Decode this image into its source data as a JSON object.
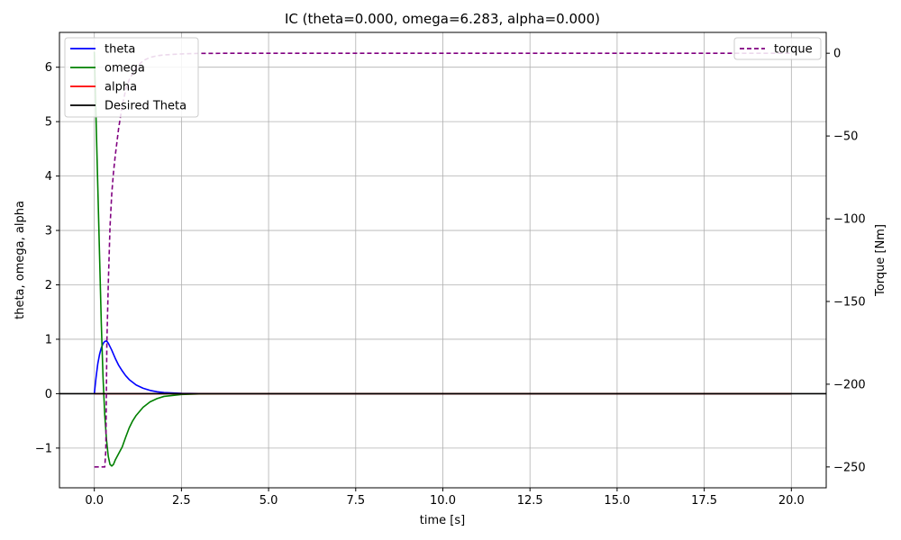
{
  "chart_data": {
    "type": "line",
    "title": "IC (theta=0.000, omega=6.283, alpha=0.000)",
    "xlabel": "time [s]",
    "ylabel": "theta, omega, alpha",
    "y2label": "Torque [Nm]",
    "xlim": [
      -1.0,
      21.0
    ],
    "ylim": [
      -1.73,
      6.64
    ],
    "y2lim": [
      -262.6,
      12.6
    ],
    "xticks": [
      0.0,
      2.5,
      5.0,
      7.5,
      10.0,
      12.5,
      15.0,
      17.5,
      20.0
    ],
    "xtick_labels": [
      "0.0",
      "2.5",
      "5.0",
      "7.5",
      "10.0",
      "12.5",
      "15.0",
      "17.5",
      "20.0"
    ],
    "yticks": [
      -1,
      0,
      1,
      2,
      3,
      4,
      5,
      6
    ],
    "ytick_labels": [
      "−1",
      "0",
      "1",
      "2",
      "3",
      "4",
      "5",
      "6"
    ],
    "y2ticks": [
      0,
      -50,
      -100,
      -150,
      -200,
      -250
    ],
    "y2tick_labels": [
      "0",
      "−50",
      "−100",
      "−150",
      "−200",
      "−250"
    ],
    "grid": true,
    "legend_left": "upper-left",
    "legend_right": "upper-right",
    "series": [
      {
        "name": "theta",
        "axis": "left",
        "color": "#0000ff",
        "style": "solid",
        "x": [
          0,
          0.05,
          0.1,
          0.15,
          0.2,
          0.25,
          0.3,
          0.35,
          0.4,
          0.5,
          0.6,
          0.7,
          0.8,
          0.9,
          1.0,
          1.2,
          1.4,
          1.6,
          1.8,
          2.0,
          2.5,
          3.0,
          4.0,
          20.0
        ],
        "y": [
          0,
          0.3,
          0.55,
          0.72,
          0.84,
          0.92,
          0.96,
          0.97,
          0.93,
          0.8,
          0.65,
          0.52,
          0.42,
          0.33,
          0.26,
          0.16,
          0.1,
          0.06,
          0.035,
          0.02,
          0.007,
          0.002,
          0.0,
          0.0
        ]
      },
      {
        "name": "omega",
        "axis": "left",
        "color": "#008000",
        "style": "solid",
        "x": [
          0,
          0.05,
          0.1,
          0.15,
          0.2,
          0.25,
          0.3,
          0.35,
          0.4,
          0.45,
          0.5,
          0.55,
          0.6,
          0.7,
          0.8,
          0.9,
          1.0,
          1.1,
          1.2,
          1.4,
          1.6,
          1.8,
          2.0,
          2.5,
          3.0,
          4.0,
          20.0
        ],
        "y": [
          6.283,
          5.05,
          3.8,
          2.55,
          1.3,
          0.3,
          -0.4,
          -0.85,
          -1.15,
          -1.3,
          -1.33,
          -1.3,
          -1.22,
          -1.1,
          -0.98,
          -0.8,
          -0.63,
          -0.5,
          -0.4,
          -0.25,
          -0.15,
          -0.09,
          -0.05,
          -0.015,
          -0.004,
          0.0,
          0.0
        ]
      },
      {
        "name": "alpha",
        "axis": "left",
        "color": "#ff0000",
        "style": "solid",
        "x": [
          0,
          20.0
        ],
        "y": [
          0.0,
          0.0
        ]
      },
      {
        "name": "Desired Theta",
        "axis": "left",
        "color": "#000000",
        "style": "solid",
        "x": [
          -1.0,
          21.0
        ],
        "y": [
          0.0,
          0.0
        ]
      },
      {
        "name": "torque",
        "axis": "right",
        "color": "#800080",
        "style": "dashed",
        "x": [
          0,
          0.1,
          0.2,
          0.3,
          0.33,
          0.36,
          0.4,
          0.45,
          0.5,
          0.55,
          0.6,
          0.7,
          0.8,
          0.9,
          1.0,
          1.2,
          1.4,
          1.6,
          1.8,
          2.0,
          2.5,
          3.0,
          4.0,
          20.0
        ],
        "y": [
          -250,
          -250,
          -250,
          -250,
          -240,
          -175,
          -140,
          -105,
          -85,
          -72,
          -62,
          -45,
          -32,
          -22,
          -16,
          -8.5,
          -4.5,
          -2.5,
          -1.5,
          -1,
          -0.4,
          -0.1,
          0,
          0
        ]
      }
    ]
  }
}
